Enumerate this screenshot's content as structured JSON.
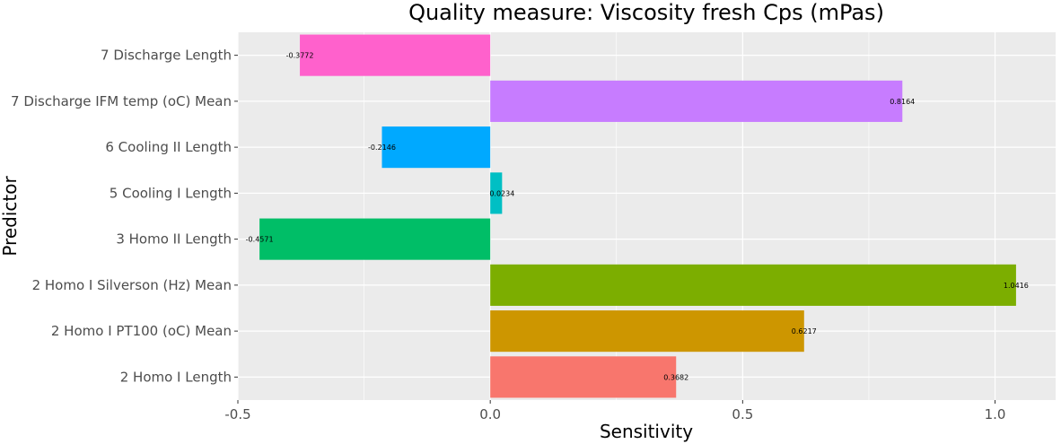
{
  "chart_data": {
    "type": "bar",
    "orientation": "horizontal",
    "title": "Quality measure: Viscosity fresh Cps (mPas)",
    "xlabel": "Sensitivity",
    "ylabel": "Predictor",
    "xlim": [
      -0.5,
      1.12
    ],
    "xticks": [
      -0.5,
      0.0,
      0.5,
      1.0
    ],
    "xtick_labels": [
      "-0.5",
      "0.0",
      "0.5",
      "1.0"
    ],
    "grid": true,
    "legend": "none",
    "categories": [
      "2 Homo I Length",
      "2 Homo I PT100 (oC) Mean",
      "2 Homo I Silverson (Hz) Mean",
      "3 Homo II Length",
      "5 Cooling I Length",
      "6 Cooling II Length",
      "7 Discharge IFM temp (oC) Mean",
      "7 Discharge Length"
    ],
    "values": [
      0.3682,
      0.6217,
      1.0416,
      -0.4571,
      0.0234,
      -0.2146,
      0.8164,
      -0.3772
    ],
    "value_labels": [
      "0.3682",
      "0.6217",
      "1.0416",
      "-0.4571",
      "0.0234",
      "-0.2146",
      "0.8164",
      "-0.3772"
    ],
    "colors": [
      "#F8766D",
      "#CD9600",
      "#7CAE00",
      "#00BE67",
      "#00BFC4",
      "#00A9FF",
      "#C77CFF",
      "#FF61CC"
    ],
    "panel_background": "#EBEBEB",
    "grid_color": "#FFFFFF"
  }
}
